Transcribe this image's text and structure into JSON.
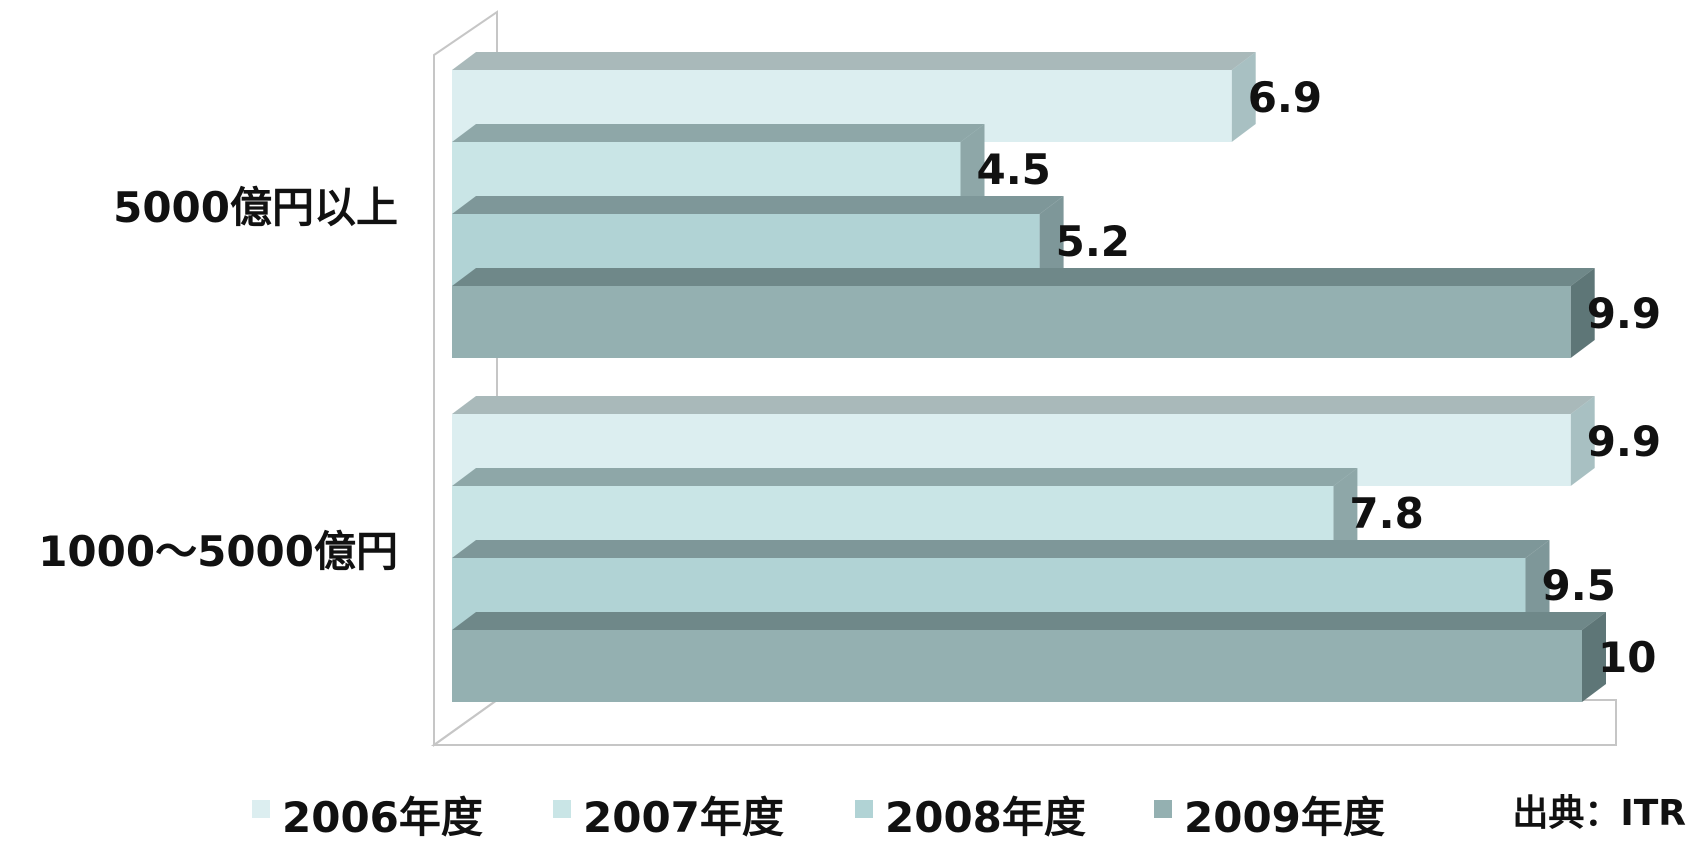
{
  "chart_data": {
    "type": "bar",
    "orientation": "horizontal",
    "three_d": true,
    "categories": [
      "5000億円以上",
      "1000～5000億円"
    ],
    "series": [
      {
        "name": "2006年度",
        "values": [
          6.9,
          9.9
        ],
        "color": "#DCEEF0",
        "side": "#A8C0C2",
        "top": "#A9B9BA"
      },
      {
        "name": "2007年度",
        "values": [
          4.5,
          7.8
        ],
        "color": "#C9E5E6",
        "side": "#8EA7A8",
        "top": "#8EA7A8"
      },
      {
        "name": "2008年度",
        "values": [
          5.2,
          9.5
        ],
        "color": "#B1D3D5",
        "side": "#7E9799",
        "top": "#7E9799"
      },
      {
        "name": "2009年度",
        "values": [
          9.9,
          10
        ],
        "color": "#94B0B1",
        "side": "#5E7677",
        "top": "#6F8889"
      }
    ],
    "value_labels": [
      [
        "6.9",
        "4.5",
        "5.2",
        "9.9"
      ],
      [
        "9.9",
        "7.8",
        "9.5",
        "10"
      ]
    ],
    "xlim": [
      0,
      10
    ],
    "legend_position": "bottom",
    "source": "出典：ITR"
  }
}
